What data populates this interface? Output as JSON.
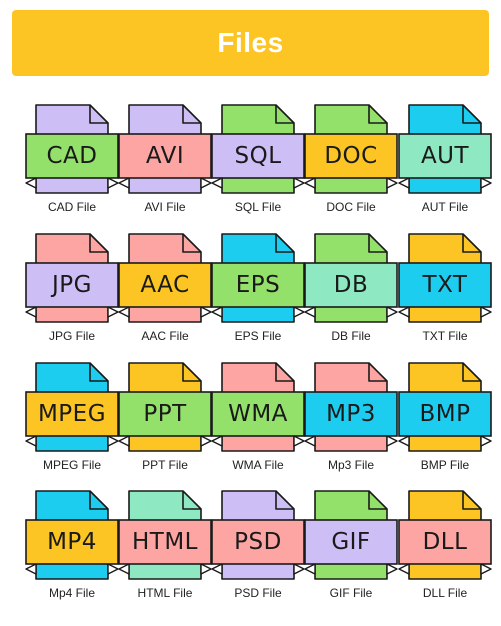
{
  "title": "Files",
  "colors": {
    "banner": "#fcc524",
    "outline": "#1a1a1a"
  },
  "icons": [
    {
      "ext": "CAD",
      "caption": "CAD File",
      "page": "#cdbff5",
      "band": "#93e06a"
    },
    {
      "ext": "AVI",
      "caption": "AVI File",
      "page": "#cdbff5",
      "band": "#fca5a3"
    },
    {
      "ext": "SQL",
      "caption": "SQL File",
      "page": "#93e06a",
      "band": "#cdbff5"
    },
    {
      "ext": "DOC",
      "caption": "DOC File",
      "page": "#93e06a",
      "band": "#fcc524"
    },
    {
      "ext": "AUT",
      "caption": "AUT File",
      "page": "#1ccdf0",
      "band": "#8ee8c2"
    },
    {
      "ext": "JPG",
      "caption": "JPG File",
      "page": "#fca5a3",
      "band": "#cdbff5"
    },
    {
      "ext": "AAC",
      "caption": "AAC File",
      "page": "#fca5a3",
      "band": "#fcc524"
    },
    {
      "ext": "EPS",
      "caption": "EPS File",
      "page": "#1ccdf0",
      "band": "#93e06a"
    },
    {
      "ext": "DB",
      "caption": "DB File",
      "page": "#93e06a",
      "band": "#8ee8c2"
    },
    {
      "ext": "TXT",
      "caption": "TXT File",
      "page": "#fcc524",
      "band": "#1ccdf0"
    },
    {
      "ext": "MPEG",
      "caption": "MPEG File",
      "page": "#1ccdf0",
      "band": "#fcc524"
    },
    {
      "ext": "PPT",
      "caption": "PPT File",
      "page": "#fcc524",
      "band": "#93e06a"
    },
    {
      "ext": "WMA",
      "caption": "WMA File",
      "page": "#fca5a3",
      "band": "#93e06a"
    },
    {
      "ext": "MP3",
      "caption": "Mp3 File",
      "page": "#fca5a3",
      "band": "#1ccdf0"
    },
    {
      "ext": "BMP",
      "caption": "BMP File",
      "page": "#fcc524",
      "band": "#1ccdf0"
    },
    {
      "ext": "MP4",
      "caption": "Mp4 File",
      "page": "#1ccdf0",
      "band": "#fcc524"
    },
    {
      "ext": "HTML",
      "caption": "HTML File",
      "page": "#8ee8c2",
      "band": "#fca5a3"
    },
    {
      "ext": "PSD",
      "caption": "PSD File",
      "page": "#cdbff5",
      "band": "#fca5a3"
    },
    {
      "ext": "GIF",
      "caption": "GIF File",
      "page": "#93e06a",
      "band": "#cdbff5"
    },
    {
      "ext": "DLL",
      "caption": "DLL File",
      "page": "#fcc524",
      "band": "#fca5a3"
    }
  ]
}
